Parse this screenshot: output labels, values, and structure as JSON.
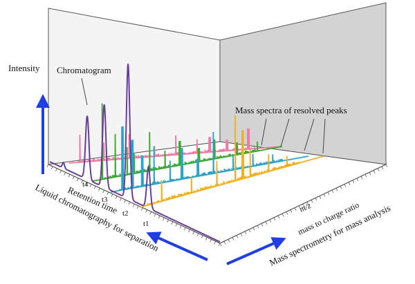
{
  "labels": {
    "intensity": "Intensity",
    "chromatogram": "Chromatogram",
    "mass_spectra": "Mass spectra of resolved peaks",
    "retention_time": "Retention time",
    "lc_separation": "Liquid chromatography for separation",
    "mz": "m/z",
    "mass_to_charge": "mass to charge ratio",
    "ms_analysis": "Mass spectrometry for mass analysis",
    "time_ticks": [
      "t4",
      "t3",
      "t2",
      "t1"
    ]
  },
  "colors": {
    "back_wall": "#f4f4f4",
    "side_wall": "#d3d3d3",
    "chromatogram": "#6a3d9a",
    "spectra": [
      "#f07aa5",
      "#3aa934",
      "#2ea3c9",
      "#f2b01e"
    ],
    "arrows": "#1f3fe0",
    "outline": "#555555"
  }
}
